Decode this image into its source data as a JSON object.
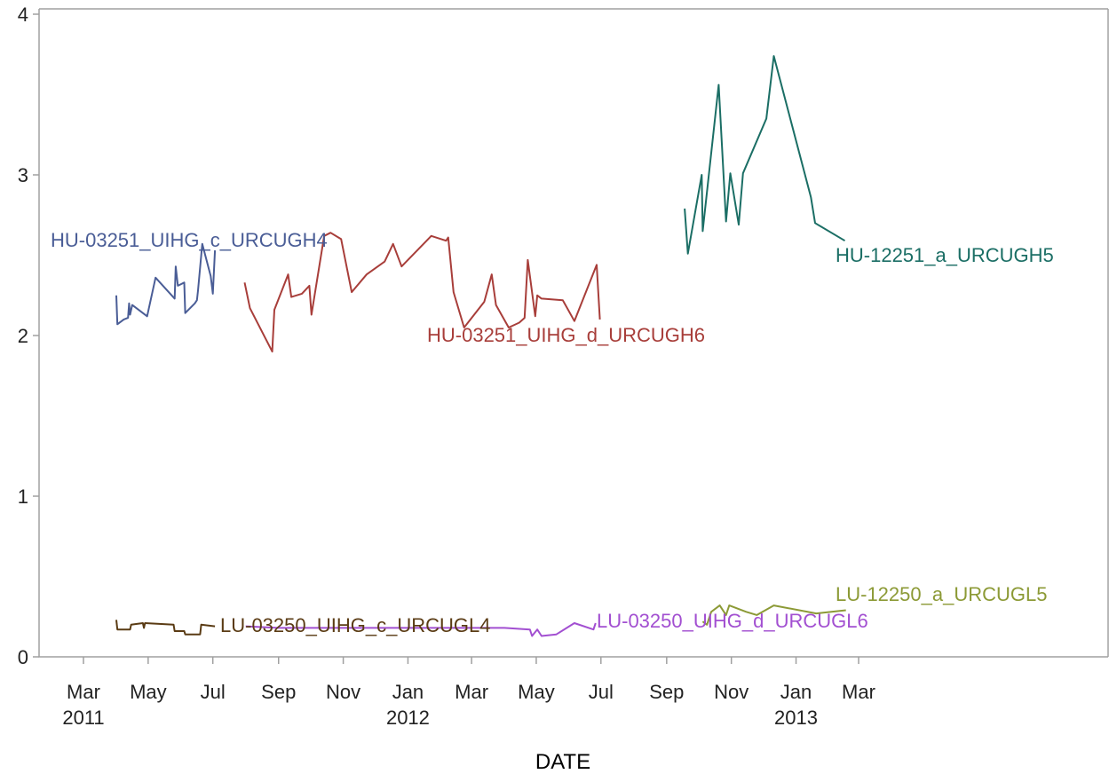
{
  "chart_data": {
    "type": "line",
    "title": "",
    "xlabel": "DATE",
    "ylabel": "",
    "xlim": [
      "2011-01-15",
      "2014-01-01"
    ],
    "ylim": [
      0,
      4
    ],
    "yticks": [
      0,
      1,
      2,
      3,
      4
    ],
    "xticks": [
      {
        "date": "2011-03-01",
        "month": "Mar",
        "year": "2011"
      },
      {
        "date": "2011-05-01",
        "month": "May",
        "year": ""
      },
      {
        "date": "2011-07-01",
        "month": "Jul",
        "year": ""
      },
      {
        "date": "2011-09-01",
        "month": "Sep",
        "year": ""
      },
      {
        "date": "2011-11-01",
        "month": "Nov",
        "year": ""
      },
      {
        "date": "2012-01-01",
        "month": "Jan",
        "year": "2012"
      },
      {
        "date": "2012-03-01",
        "month": "Mar",
        "year": ""
      },
      {
        "date": "2012-05-01",
        "month": "May",
        "year": ""
      },
      {
        "date": "2012-07-01",
        "month": "Jul",
        "year": ""
      },
      {
        "date": "2012-09-01",
        "month": "Sep",
        "year": ""
      },
      {
        "date": "2012-11-01",
        "month": "Nov",
        "year": ""
      },
      {
        "date": "2013-01-01",
        "month": "Jan",
        "year": "2013"
      },
      {
        "date": "2013-03-01",
        "month": "Mar",
        "year": ""
      }
    ],
    "grid": false,
    "legend": "inline labels at series ends",
    "series": [
      {
        "name": "HU-03251_UIHG_c_URCUGH4",
        "color": "#4a5d96",
        "label_anchor": "end",
        "points": [
          [
            "2011-04-01",
            2.25
          ],
          [
            "2011-04-02",
            2.07
          ],
          [
            "2011-04-08",
            2.1
          ],
          [
            "2011-04-12",
            2.11
          ],
          [
            "2011-04-13",
            2.2
          ],
          [
            "2011-04-14",
            2.13
          ],
          [
            "2011-04-16",
            2.19
          ],
          [
            "2011-04-30",
            2.12
          ],
          [
            "2011-05-08",
            2.36
          ],
          [
            "2011-05-26",
            2.23
          ],
          [
            "2011-05-27",
            2.43
          ],
          [
            "2011-05-29",
            2.31
          ],
          [
            "2011-06-01",
            2.32
          ],
          [
            "2011-06-04",
            2.33
          ],
          [
            "2011-06-05",
            2.14
          ],
          [
            "2011-06-14",
            2.2
          ],
          [
            "2011-06-16",
            2.22
          ],
          [
            "2011-06-17",
            2.28
          ],
          [
            "2011-06-21",
            2.57
          ],
          [
            "2011-06-29",
            2.37
          ],
          [
            "2011-07-01",
            2.26
          ],
          [
            "2011-07-03",
            2.53
          ]
        ]
      },
      {
        "name": "HU-03251_UIHG_d_URCUGH6",
        "color": "#a83e3a",
        "label_anchor": "start",
        "points": [
          [
            "2011-07-31",
            2.33
          ],
          [
            "2011-08-05",
            2.17
          ],
          [
            "2011-08-26",
            1.9
          ],
          [
            "2011-08-28",
            2.16
          ],
          [
            "2011-09-10",
            2.38
          ],
          [
            "2011-09-13",
            2.24
          ],
          [
            "2011-09-23",
            2.26
          ],
          [
            "2011-09-30",
            2.31
          ],
          [
            "2011-10-02",
            2.13
          ],
          [
            "2011-10-14",
            2.62
          ],
          [
            "2011-10-20",
            2.64
          ],
          [
            "2011-10-30",
            2.6
          ],
          [
            "2011-11-09",
            2.27
          ],
          [
            "2011-11-23",
            2.38
          ],
          [
            "2011-12-10",
            2.46
          ],
          [
            "2011-12-18",
            2.57
          ],
          [
            "2011-12-26",
            2.43
          ],
          [
            "2012-01-23",
            2.62
          ],
          [
            "2012-02-06",
            2.59
          ],
          [
            "2012-02-08",
            2.61
          ],
          [
            "2012-02-13",
            2.27
          ],
          [
            "2012-02-23",
            2.05
          ],
          [
            "2012-03-13",
            2.21
          ],
          [
            "2012-03-20",
            2.38
          ],
          [
            "2012-03-24",
            2.19
          ],
          [
            "2012-04-05",
            2.05
          ],
          [
            "2012-04-15",
            2.08
          ],
          [
            "2012-04-20",
            2.11
          ],
          [
            "2012-04-23",
            2.47
          ],
          [
            "2012-04-30",
            2.12
          ],
          [
            "2012-05-02",
            2.25
          ],
          [
            "2012-05-06",
            2.23
          ],
          [
            "2012-05-26",
            2.22
          ],
          [
            "2012-06-06",
            2.09
          ],
          [
            "2012-06-27",
            2.44
          ],
          [
            "2012-06-30",
            2.1
          ]
        ]
      },
      {
        "name": "HU-12251_a_URCUGH5",
        "color": "#1b6e65",
        "label_anchor": "end",
        "points": [
          [
            "2012-09-18",
            2.79
          ],
          [
            "2012-09-21",
            2.51
          ],
          [
            "2012-10-04",
            3.0
          ],
          [
            "2012-10-05",
            2.65
          ],
          [
            "2012-10-20",
            3.56
          ],
          [
            "2012-10-27",
            2.71
          ],
          [
            "2012-10-31",
            3.01
          ],
          [
            "2012-11-08",
            2.69
          ],
          [
            "2012-11-12",
            3.01
          ],
          [
            "2012-12-04",
            3.35
          ],
          [
            "2012-12-11",
            3.74
          ],
          [
            "2013-01-15",
            2.86
          ],
          [
            "2013-01-19",
            2.7
          ],
          [
            "2013-02-16",
            2.59
          ]
        ]
      },
      {
        "name": "LU-03250_UIHG_c_URCUGL4",
        "color": "#5a3b14",
        "label_anchor": "end",
        "points": [
          [
            "2011-04-01",
            0.23
          ],
          [
            "2011-04-02",
            0.17
          ],
          [
            "2011-04-14",
            0.17
          ],
          [
            "2011-04-15",
            0.2
          ],
          [
            "2011-04-26",
            0.21
          ],
          [
            "2011-04-27",
            0.18
          ],
          [
            "2011-04-28",
            0.21
          ],
          [
            "2011-05-25",
            0.2
          ],
          [
            "2011-05-26",
            0.16
          ],
          [
            "2011-06-04",
            0.16
          ],
          [
            "2011-06-05",
            0.14
          ],
          [
            "2011-06-19",
            0.14
          ],
          [
            "2011-06-20",
            0.2
          ],
          [
            "2011-07-03",
            0.19
          ]
        ]
      },
      {
        "name": "LU-03250_UIHG_d_URCUGL6",
        "color": "#a24fd1",
        "label_anchor": "end",
        "points": [
          [
            "2011-08-01",
            0.19
          ],
          [
            "2011-09-01",
            0.18
          ],
          [
            "2011-11-01",
            0.18
          ],
          [
            "2012-01-01",
            0.18
          ],
          [
            "2012-02-15",
            0.18
          ],
          [
            "2012-04-01",
            0.18
          ],
          [
            "2012-04-25",
            0.17
          ],
          [
            "2012-04-27",
            0.13
          ],
          [
            "2012-05-02",
            0.17
          ],
          [
            "2012-05-06",
            0.13
          ],
          [
            "2012-05-20",
            0.14
          ],
          [
            "2012-06-06",
            0.21
          ],
          [
            "2012-06-24",
            0.17
          ],
          [
            "2012-06-26",
            0.21
          ]
        ]
      },
      {
        "name": "LU-12250_a_URCUGL5",
        "color": "#8c9a36",
        "label_anchor": "end",
        "points": [
          [
            "2012-10-05",
            0.22
          ],
          [
            "2012-10-09",
            0.2
          ],
          [
            "2012-10-13",
            0.28
          ],
          [
            "2012-10-21",
            0.32
          ],
          [
            "2012-10-27",
            0.26
          ],
          [
            "2012-10-30",
            0.32
          ],
          [
            "2012-11-15",
            0.28
          ],
          [
            "2012-11-25",
            0.26
          ],
          [
            "2012-12-11",
            0.32
          ],
          [
            "2013-01-20",
            0.27
          ],
          [
            "2013-02-17",
            0.29
          ]
        ]
      }
    ]
  }
}
